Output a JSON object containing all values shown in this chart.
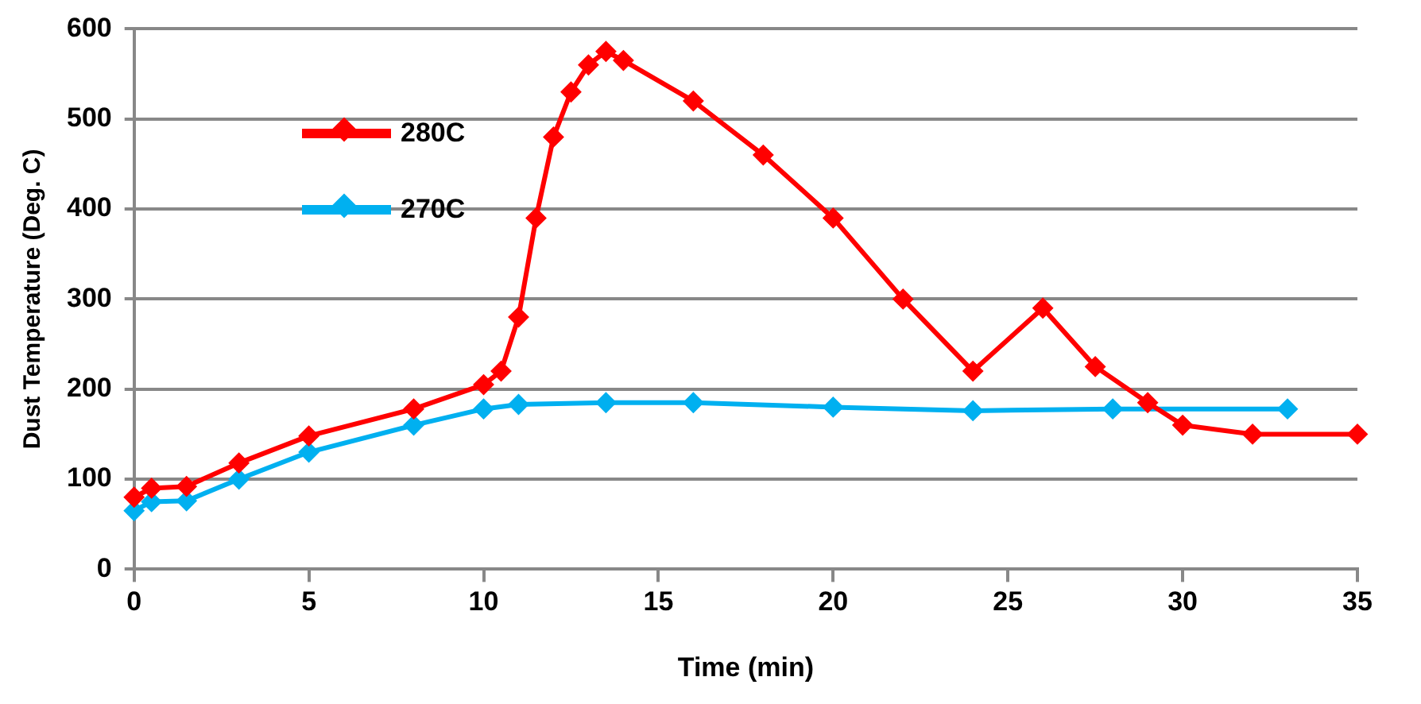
{
  "chart_data": {
    "type": "line",
    "xlabel": "Time (min)",
    "ylabel": "Dust Temperature (Deg. C)",
    "xlim": [
      0,
      35
    ],
    "xticks": [
      0,
      5,
      10,
      15,
      20,
      25,
      30,
      35
    ],
    "ylim": [
      0,
      600
    ],
    "yticks": [
      0,
      100,
      200,
      300,
      400,
      500,
      600
    ],
    "grid": "y",
    "legend": "top left",
    "marker": "diamond",
    "line_style": "solid",
    "series": [
      {
        "name": "280C",
        "color": "#ff0000",
        "x": [
          0,
          0.5,
          1.5,
          3,
          5,
          8,
          10,
          10.5,
          11,
          11.5,
          12,
          12.5,
          13,
          13.5,
          14,
          16,
          18,
          20,
          22,
          24,
          26,
          27.5,
          29,
          30,
          32,
          35
        ],
        "values": [
          80,
          90,
          92,
          118,
          148,
          178,
          205,
          220,
          280,
          390,
          480,
          530,
          560,
          575,
          565,
          520,
          460,
          390,
          300,
          220,
          290,
          225,
          185,
          160,
          150,
          150
        ]
      },
      {
        "name": "270C",
        "color": "#00b0f0",
        "x": [
          0,
          0.5,
          1.5,
          3,
          5,
          8,
          10,
          11,
          13.5,
          16,
          20,
          24,
          28,
          33
        ],
        "values": [
          65,
          75,
          76,
          100,
          130,
          160,
          178,
          183,
          185,
          185,
          180,
          176,
          178,
          178
        ]
      }
    ]
  }
}
